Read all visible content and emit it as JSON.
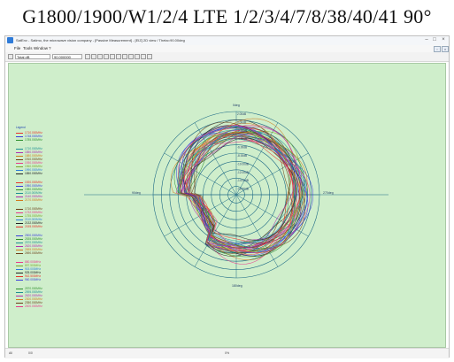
{
  "heading": "G1800/1900/W1/2/4 LTE 1/2/3/4/7/8/38/40/41    90°",
  "window": {
    "title": "SatEnv - Satimo, the microwave vision company - [Passive Measurement] - [EIZ] 2D view / Theta=90.00deg",
    "menus": [
      "File",
      "Tools",
      "Window",
      "?"
    ],
    "toolbar": {
      "variable": "Total dB",
      "value": "90.000000"
    }
  },
  "plot": {
    "type": "polar",
    "angle_labels": {
      "top": "0deg",
      "right": "270deg",
      "bottom": "180deg",
      "left": "90deg"
    },
    "radial_labels": [
      "2.00dB",
      "0.00dB",
      "-2.00dB",
      "-4.00dB",
      "-6.00dB",
      "-8.00dB",
      "-10.00dB",
      "-12.00dB",
      "-14.00dB",
      "-16.00dB"
    ]
  },
  "legend": {
    "title": "Legend",
    "groups": [
      [
        {
          "label": "1710.000MHz",
          "color": "#e8322c"
        },
        {
          "label": "1748.000MHz",
          "color": "#3a3cdc"
        },
        {
          "label": "1785.000MHz",
          "color": "#2f8f2f"
        }
      ],
      [
        {
          "label": "1710.000MHz",
          "color": "#1d8f92"
        },
        {
          "label": "1850.000MHz",
          "color": "#b02fb0"
        },
        {
          "label": "1880.000MHz",
          "color": "#d07a1c"
        },
        {
          "label": "1910.000MHz",
          "color": "#6b3d16"
        },
        {
          "label": "1930.000MHz",
          "color": "#e83a8c"
        },
        {
          "label": "1960.000MHz",
          "color": "#78a82a"
        },
        {
          "label": "1990.000MHz",
          "color": "#2a7bd8"
        },
        {
          "label": "1850.000MHz",
          "color": "#222222"
        }
      ],
      [
        {
          "label": "1920.000MHz",
          "color": "#e8322c"
        },
        {
          "label": "1950.000MHz",
          "color": "#3a3cdc"
        },
        {
          "label": "1980.000MHz",
          "color": "#2f8f2f"
        },
        {
          "label": "2110.000MHz",
          "color": "#1d8f92"
        },
        {
          "label": "2140.000MHz",
          "color": "#b02fb0"
        },
        {
          "label": "2170.000MHz",
          "color": "#d07a1c"
        }
      ],
      [
        {
          "label": "1710.000MHz",
          "color": "#6b3d16"
        },
        {
          "label": "1732.000MHz",
          "color": "#e83a8c"
        },
        {
          "label": "1755.000MHz",
          "color": "#78a82a"
        },
        {
          "label": "2110.000MHz",
          "color": "#2a7bd8"
        },
        {
          "label": "2132.000MHz",
          "color": "#222222"
        },
        {
          "label": "2155.000MHz",
          "color": "#e8322c"
        }
      ],
      [
        {
          "label": "2500.000MHz",
          "color": "#3a3cdc"
        },
        {
          "label": "2535.000MHz",
          "color": "#2f8f2f"
        },
        {
          "label": "2570.000MHz",
          "color": "#1d8f92"
        },
        {
          "label": "2620.000MHz",
          "color": "#b02fb0"
        },
        {
          "label": "2655.000MHz",
          "color": "#d07a1c"
        },
        {
          "label": "2690.000MHz",
          "color": "#6b3d16"
        }
      ],
      [
        {
          "label": "880.000MHz",
          "color": "#e83a8c"
        },
        {
          "label": "897.500MHz",
          "color": "#78a82a"
        },
        {
          "label": "915.000MHz",
          "color": "#2a7bd8"
        },
        {
          "label": "925.000MHz",
          "color": "#222222"
        },
        {
          "label": "942.500MHz",
          "color": "#e8322c"
        },
        {
          "label": "960.000MHz",
          "color": "#3a3cdc"
        }
      ],
      [
        {
          "label": "2570.000MHz",
          "color": "#2f8f2f"
        },
        {
          "label": "2595.000MHz",
          "color": "#1d8f92"
        },
        {
          "label": "2620.000MHz",
          "color": "#b02fb0"
        },
        {
          "label": "2300.000MHz",
          "color": "#d07a1c"
        },
        {
          "label": "2350.000MHz",
          "color": "#6b3d16"
        },
        {
          "label": "2400.000MHz",
          "color": "#e83a8c"
        }
      ]
    ]
  },
  "status": {
    "left": "All",
    "mid": "0/0",
    "center": "0%"
  }
}
